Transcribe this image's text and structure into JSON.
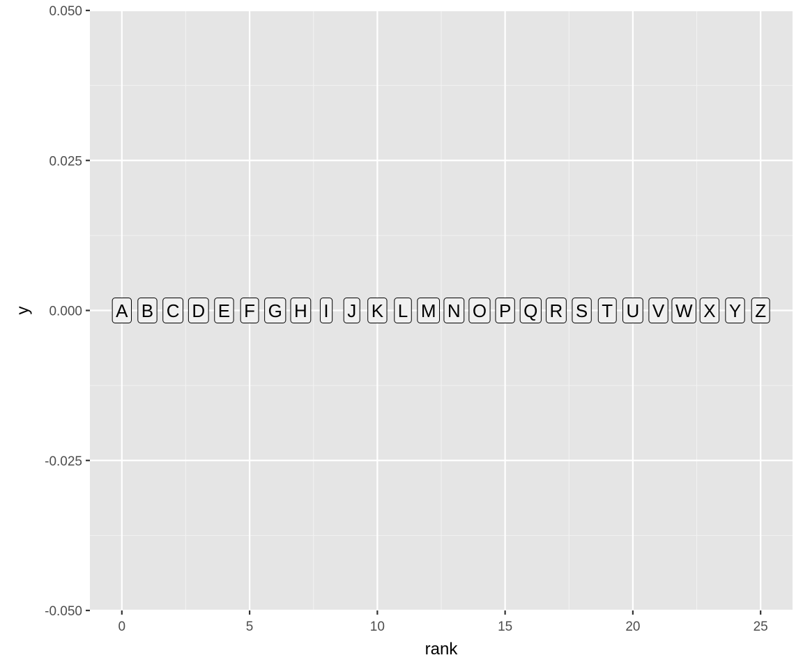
{
  "chart_data": {
    "type": "scatter",
    "geom": "label",
    "xlabel": "rank",
    "ylabel": "y",
    "xlim": [
      -1.25,
      26.25
    ],
    "ylim": [
      -0.05,
      0.05
    ],
    "x_ticks": [
      0,
      5,
      10,
      15,
      20,
      25
    ],
    "x_tick_labels": [
      "0",
      "5",
      "10",
      "15",
      "20",
      "25"
    ],
    "y_ticks": [
      -0.05,
      -0.025,
      0,
      0.025,
      0.05
    ],
    "y_tick_labels": [
      "-0.050",
      "-0.025",
      "0.000",
      "0.025",
      "0.050"
    ],
    "grid": true,
    "legend": "none",
    "points": [
      {
        "x": 0,
        "y": 0,
        "label": "A"
      },
      {
        "x": 1,
        "y": 0,
        "label": "B"
      },
      {
        "x": 2,
        "y": 0,
        "label": "C"
      },
      {
        "x": 3,
        "y": 0,
        "label": "D"
      },
      {
        "x": 4,
        "y": 0,
        "label": "E"
      },
      {
        "x": 5,
        "y": 0,
        "label": "F"
      },
      {
        "x": 6,
        "y": 0,
        "label": "G"
      },
      {
        "x": 7,
        "y": 0,
        "label": "H"
      },
      {
        "x": 8,
        "y": 0,
        "label": "I"
      },
      {
        "x": 9,
        "y": 0,
        "label": "J"
      },
      {
        "x": 10,
        "y": 0,
        "label": "K"
      },
      {
        "x": 11,
        "y": 0,
        "label": "L"
      },
      {
        "x": 12,
        "y": 0,
        "label": "M"
      },
      {
        "x": 13,
        "y": 0,
        "label": "N"
      },
      {
        "x": 14,
        "y": 0,
        "label": "O"
      },
      {
        "x": 15,
        "y": 0,
        "label": "P"
      },
      {
        "x": 16,
        "y": 0,
        "label": "Q"
      },
      {
        "x": 17,
        "y": 0,
        "label": "R"
      },
      {
        "x": 18,
        "y": 0,
        "label": "S"
      },
      {
        "x": 19,
        "y": 0,
        "label": "T"
      },
      {
        "x": 20,
        "y": 0,
        "label": "U"
      },
      {
        "x": 21,
        "y": 0,
        "label": "V"
      },
      {
        "x": 22,
        "y": 0,
        "label": "W"
      },
      {
        "x": 23,
        "y": 0,
        "label": "X"
      },
      {
        "x": 24,
        "y": 0,
        "label": "Y"
      },
      {
        "x": 25,
        "y": 0,
        "label": "Z"
      }
    ],
    "colors": {
      "panel_background": "#e5e5e5",
      "grid_major": "#ffffff",
      "grid_minor": "#f2f2f2",
      "label_fill": "#f0f0f0",
      "label_border": "#000000",
      "tick_color": "#333333"
    }
  }
}
